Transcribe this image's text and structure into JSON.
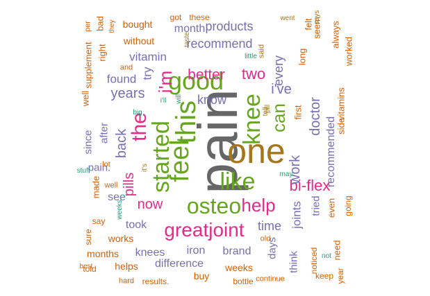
{
  "palette": {
    "orange": "#D95F02",
    "purple": "#7570B3",
    "magenta": "#E7298A",
    "green": "#66A61E",
    "gold": "#A6761D",
    "gray": "#666666",
    "teal": "#1B9E77"
  },
  "words": [
    {
      "text": "pain",
      "color": "gray",
      "weight": 0.95,
      "rotated": true
    },
    {
      "text": "one",
      "color": "gold",
      "weight": 0.75,
      "rotated": false
    },
    {
      "text": "this",
      "color": "green",
      "weight": 0.58,
      "rotated": true
    },
    {
      "text": "feel",
      "color": "green",
      "weight": 0.52,
      "rotated": true
    },
    {
      "text": "started",
      "color": "green",
      "weight": 0.45,
      "rotated": true
    },
    {
      "text": "good",
      "color": "green",
      "weight": 0.5,
      "rotated": false
    },
    {
      "text": "knee",
      "color": "green",
      "weight": 0.48,
      "rotated": true
    },
    {
      "text": "like",
      "color": "green",
      "weight": 0.48,
      "rotated": false
    },
    {
      "text": "osteo",
      "color": "green",
      "weight": 0.48,
      "rotated": false
    },
    {
      "text": "the",
      "color": "magenta",
      "weight": 0.42,
      "rotated": true
    },
    {
      "text": "greatjoint",
      "color": "magenta",
      "weight": 0.4,
      "rotated": false
    },
    {
      "text": "i'm",
      "color": "magenta",
      "weight": 0.36,
      "rotated": true
    },
    {
      "text": "help",
      "color": "magenta",
      "weight": 0.34,
      "rotated": false
    },
    {
      "text": "can",
      "color": "green",
      "weight": 0.34,
      "rotated": true
    },
    {
      "text": "bi-flex",
      "color": "magenta",
      "weight": 0.33,
      "rotated": false
    },
    {
      "text": "two",
      "color": "magenta",
      "weight": 0.3,
      "rotated": false
    },
    {
      "text": "better",
      "color": "magenta",
      "weight": 0.3,
      "rotated": false
    },
    {
      "text": "pills",
      "color": "magenta",
      "weight": 0.28,
      "rotated": true
    },
    {
      "text": "now",
      "color": "magenta",
      "weight": 0.28,
      "rotated": false
    },
    {
      "text": "work",
      "color": "purple",
      "weight": 0.27,
      "rotated": true
    },
    {
      "text": "doctor",
      "color": "purple",
      "weight": 0.25,
      "rotated": true
    },
    {
      "text": "i've",
      "color": "purple",
      "weight": 0.25,
      "rotated": false
    },
    {
      "text": "years",
      "color": "purple",
      "weight": 0.25,
      "rotated": false
    },
    {
      "text": "back",
      "color": "purple",
      "weight": 0.25,
      "rotated": true
    },
    {
      "text": "know",
      "color": "purple",
      "weight": 0.22,
      "rotated": false
    },
    {
      "text": "every",
      "color": "purple",
      "weight": 0.24,
      "rotated": true
    },
    {
      "text": "products",
      "color": "purple",
      "weight": 0.22,
      "rotated": false
    },
    {
      "text": "recommend",
      "color": "purple",
      "weight": 0.22,
      "rotated": false
    },
    {
      "text": "vitamin",
      "color": "purple",
      "weight": 0.2,
      "rotated": false
    },
    {
      "text": "found",
      "color": "purple",
      "weight": 0.2,
      "rotated": false
    },
    {
      "text": "try",
      "color": "purple",
      "weight": 0.2,
      "rotated": true
    },
    {
      "text": "time",
      "color": "purple",
      "weight": 0.2,
      "rotated": false
    },
    {
      "text": "joints",
      "color": "purple",
      "weight": 0.2,
      "rotated": true
    },
    {
      "text": "took",
      "color": "purple",
      "weight": 0.18,
      "rotated": false
    },
    {
      "text": "brand",
      "color": "purple",
      "weight": 0.2,
      "rotated": false
    },
    {
      "text": "iron",
      "color": "purple",
      "weight": 0.2,
      "rotated": false
    },
    {
      "text": "knees",
      "color": "purple",
      "weight": 0.2,
      "rotated": false
    },
    {
      "text": "difference",
      "color": "purple",
      "weight": 0.18,
      "rotated": false
    },
    {
      "text": "recommended",
      "color": "purple",
      "weight": 0.18,
      "rotated": true
    },
    {
      "text": "month",
      "color": "purple",
      "weight": 0.18,
      "rotated": false
    },
    {
      "text": "see",
      "color": "purple",
      "weight": 0.18,
      "rotated": false
    },
    {
      "text": "pain.",
      "color": "purple",
      "weight": 0.17,
      "rotated": false
    },
    {
      "text": "since",
      "color": "purple",
      "weight": 0.17,
      "rotated": true
    },
    {
      "text": "after",
      "color": "purple",
      "weight": 0.17,
      "rotated": true
    },
    {
      "text": "tried",
      "color": "purple",
      "weight": 0.17,
      "rotated": true
    },
    {
      "text": "think",
      "color": "purple",
      "weight": 0.17,
      "rotated": true
    },
    {
      "text": "days",
      "color": "purple",
      "weight": 0.17,
      "rotated": true
    },
    {
      "text": "works",
      "color": "orange",
      "weight": 0.16,
      "rotated": false
    },
    {
      "text": "months",
      "color": "orange",
      "weight": 0.16,
      "rotated": false
    },
    {
      "text": "helps",
      "color": "orange",
      "weight": 0.16,
      "rotated": false
    },
    {
      "text": "weeks",
      "color": "orange",
      "weight": 0.17,
      "rotated": false
    },
    {
      "text": "buy",
      "color": "orange",
      "weight": 0.17,
      "rotated": false
    },
    {
      "text": "bought",
      "color": "orange",
      "weight": 0.16,
      "rotated": false
    },
    {
      "text": "without",
      "color": "orange",
      "weight": 0.16,
      "rotated": false
    },
    {
      "text": "supplement",
      "color": "orange",
      "weight": 0.15,
      "rotated": true
    },
    {
      "text": "long",
      "color": "orange",
      "weight": 0.16,
      "rotated": true
    },
    {
      "text": "felt",
      "color": "orange",
      "weight": 0.16,
      "rotated": true
    },
    {
      "text": "seem",
      "color": "orange",
      "weight": 0.15,
      "rotated": true
    },
    {
      "text": "always",
      "color": "orange",
      "weight": 0.14,
      "rotated": true
    },
    {
      "text": "worked",
      "color": "orange",
      "weight": 0.14,
      "rotated": true
    },
    {
      "text": "right",
      "color": "orange",
      "weight": 0.14,
      "rotated": true
    },
    {
      "text": "bad",
      "color": "orange",
      "weight": 0.13,
      "rotated": true
    },
    {
      "text": "well",
      "color": "orange",
      "weight": 0.13,
      "rotated": true
    },
    {
      "text": "vitamins",
      "color": "orange",
      "weight": 0.13,
      "rotated": true
    },
    {
      "text": "side",
      "color": "orange",
      "weight": 0.13,
      "rotated": true
    },
    {
      "text": "first",
      "color": "orange",
      "weight": 0.13,
      "rotated": true
    },
    {
      "text": "made",
      "color": "orange",
      "weight": 0.14,
      "rotated": true
    },
    {
      "text": "even",
      "color": "orange",
      "weight": 0.14,
      "rotated": true
    },
    {
      "text": "going",
      "color": "orange",
      "weight": 0.14,
      "rotated": true
    },
    {
      "text": "noticed",
      "color": "orange",
      "weight": 0.14,
      "rotated": true
    },
    {
      "text": "need",
      "color": "orange",
      "weight": 0.14,
      "rotated": true
    },
    {
      "text": "keep",
      "color": "orange",
      "weight": 0.14,
      "rotated": false
    },
    {
      "text": "year",
      "color": "orange",
      "weight": 0.13,
      "rotated": true
    },
    {
      "text": "told",
      "color": "orange",
      "weight": 0.13,
      "rotated": false
    },
    {
      "text": "sure",
      "color": "orange",
      "weight": 0.13,
      "rotated": true
    },
    {
      "text": "say",
      "color": "orange",
      "weight": 0.13,
      "rotated": false
    },
    {
      "text": "results.",
      "color": "orange",
      "weight": 0.12,
      "rotated": false
    },
    {
      "text": "bottle",
      "color": "orange",
      "weight": 0.12,
      "rotated": false
    },
    {
      "text": "continue",
      "color": "orange",
      "weight": 0.12,
      "rotated": false
    },
    {
      "text": "got",
      "color": "orange",
      "weight": 0.12,
      "rotated": false
    },
    {
      "text": "these",
      "color": "orange",
      "weight": 0.11,
      "rotated": false
    },
    {
      "text": "and",
      "color": "orange",
      "weight": 0.11,
      "rotated": false
    },
    {
      "text": "well",
      "color": "orange",
      "weight": 0.11,
      "rotated": false
    },
    {
      "text": "lot",
      "color": "orange",
      "weight": 0.11,
      "rotated": false
    },
    {
      "text": "old",
      "color": "orange",
      "weight": 0.11,
      "rotated": false
    },
    {
      "text": "hard",
      "color": "orange",
      "weight": 0.11,
      "rotated": false
    },
    {
      "text": "best",
      "color": "orange",
      "weight": 0.11,
      "rotated": false
    },
    {
      "text": "per",
      "color": "orange",
      "weight": 0.11,
      "rotated": true
    },
    {
      "text": "they",
      "color": "orange",
      "weight": 0.11,
      "rotated": true
    },
    {
      "text": "taste",
      "color": "gold",
      "weight": 0.09,
      "rotated": true
    },
    {
      "text": "it's",
      "color": "gold",
      "weight": 0.09,
      "rotated": true
    },
    {
      "text": "said",
      "color": "gold",
      "weight": 0.09,
      "rotated": true
    },
    {
      "text": "pill",
      "color": "gold",
      "weight": 0.11,
      "rotated": true
    },
    {
      "text": "tell",
      "color": "gold",
      "weight": 0.1,
      "rotated": true
    },
    {
      "text": "went",
      "color": "gold",
      "weight": 0.09,
      "rotated": false
    },
    {
      "text": "says",
      "color": "gold",
      "weight": 0.09,
      "rotated": true
    },
    {
      "text": "little",
      "color": "teal",
      "weight": 0.09,
      "rotated": false
    },
    {
      "text": "will",
      "color": "teal",
      "weight": 0.09,
      "rotated": true
    },
    {
      "text": "i'll",
      "color": "teal",
      "weight": 0.09,
      "rotated": false
    },
    {
      "text": "big",
      "color": "teal",
      "weight": 0.09,
      "rotated": false
    },
    {
      "text": "stuff",
      "color": "teal",
      "weight": 0.09,
      "rotated": false
    },
    {
      "text": "weeks.",
      "color": "teal",
      "weight": 0.09,
      "rotated": true
    },
    {
      "text": "may",
      "color": "teal",
      "weight": 0.09,
      "rotated": false
    },
    {
      "text": "not",
      "color": "teal",
      "weight": 0.09,
      "rotated": false
    },
    {
      "text": "last",
      "color": "teal",
      "weight": 0.09,
      "rotated": false
    }
  ]
}
